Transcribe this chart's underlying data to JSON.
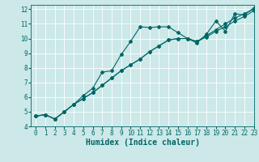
{
  "title": "",
  "xlabel": "Humidex (Indice chaleur)",
  "ylabel": "",
  "bg_color": "#cce8e8",
  "line_color": "#006666",
  "grid_color": "#ffffff",
  "xlim": [
    -0.5,
    23
  ],
  "ylim": [
    4,
    12.3
  ],
  "xticks": [
    0,
    1,
    2,
    3,
    4,
    5,
    6,
    7,
    8,
    9,
    10,
    11,
    12,
    13,
    14,
    15,
    16,
    17,
    18,
    19,
    20,
    21,
    22,
    23
  ],
  "yticks": [
    4,
    5,
    6,
    7,
    8,
    9,
    10,
    11,
    12
  ],
  "series": [
    [
      4.7,
      4.8,
      4.5,
      5.0,
      5.5,
      6.1,
      6.6,
      7.7,
      7.8,
      8.9,
      9.8,
      10.8,
      10.75,
      10.8,
      10.8,
      10.4,
      10.0,
      9.7,
      10.3,
      11.2,
      10.5,
      11.7,
      11.6,
      12.1
    ],
    [
      4.7,
      4.8,
      4.5,
      5.0,
      5.5,
      5.9,
      6.3,
      6.8,
      7.3,
      7.8,
      8.2,
      8.6,
      9.1,
      9.5,
      9.9,
      10.0,
      10.0,
      9.8,
      10.1,
      10.5,
      10.8,
      11.2,
      11.5,
      11.9
    ],
    [
      4.7,
      4.8,
      4.5,
      5.0,
      5.5,
      5.9,
      6.3,
      6.8,
      7.3,
      7.8,
      8.2,
      8.6,
      9.1,
      9.5,
      9.9,
      10.0,
      10.0,
      9.8,
      10.2,
      10.6,
      11.0,
      11.4,
      11.7,
      12.0
    ]
  ],
  "marker": "D",
  "markersize": 2,
  "linewidth": 0.8,
  "xlabel_fontsize": 7,
  "tick_fontsize": 5.5
}
